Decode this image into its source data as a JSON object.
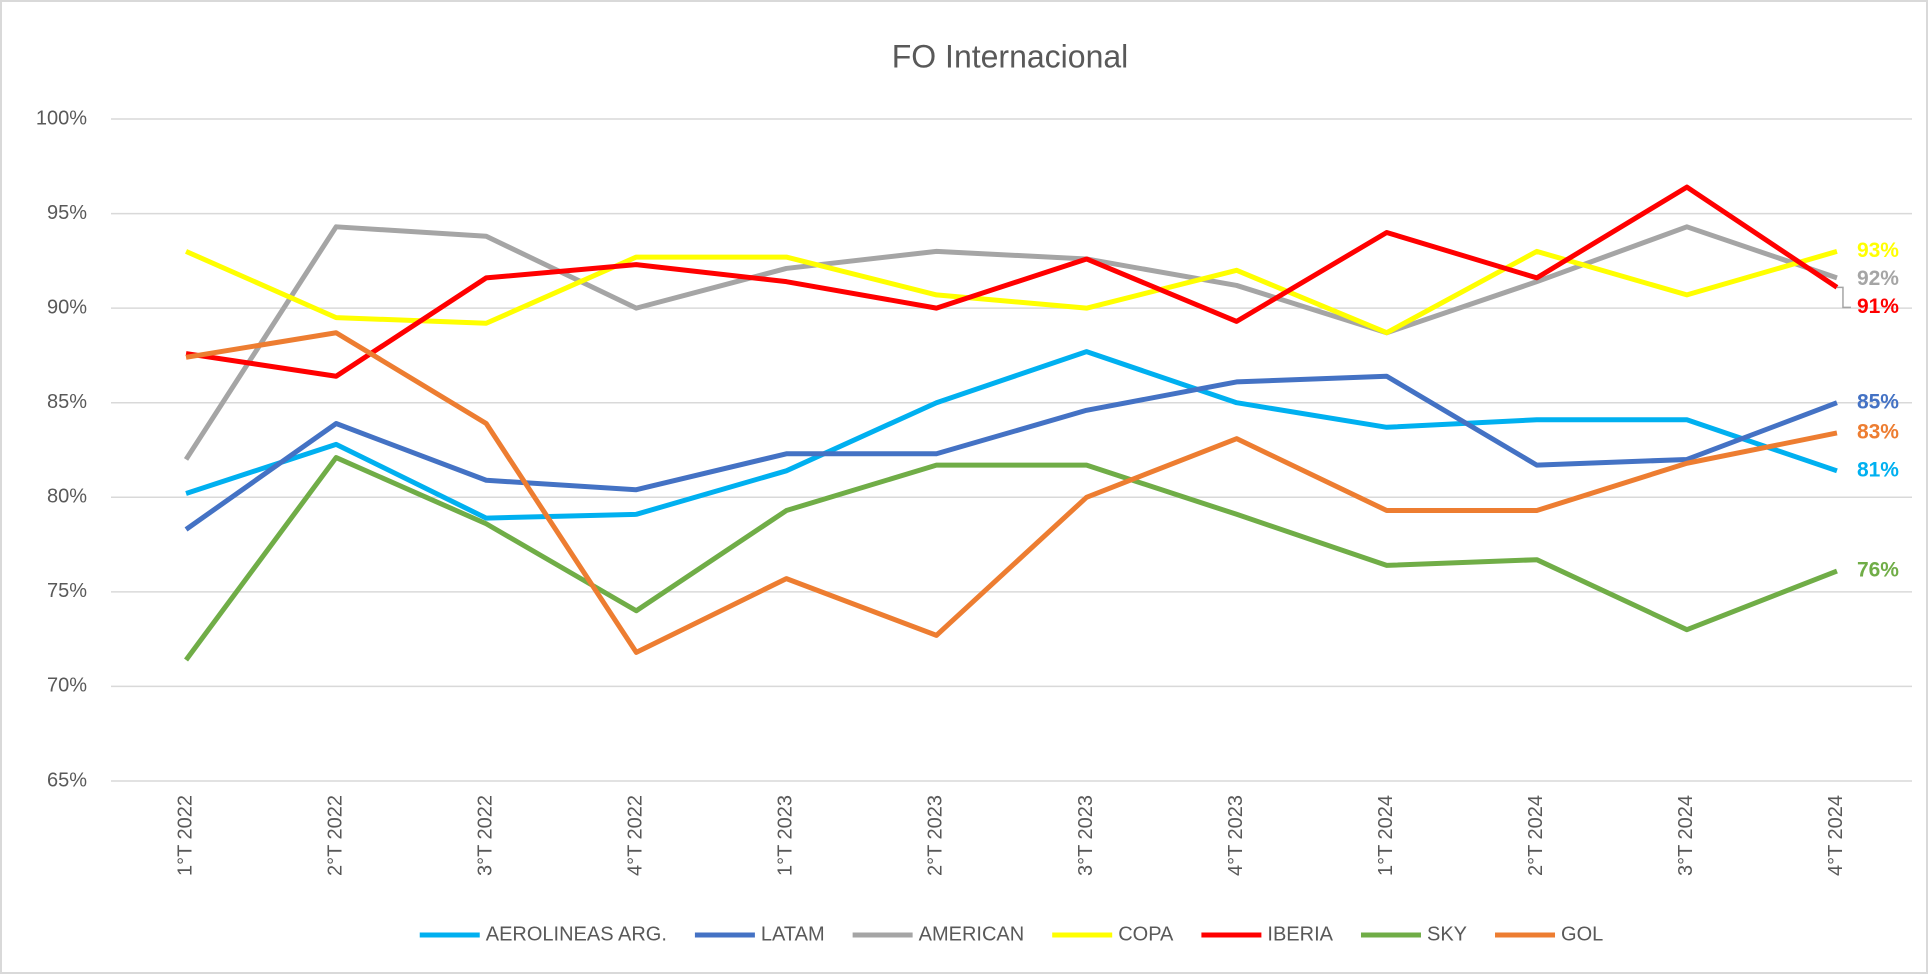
{
  "chart_data": {
    "type": "line",
    "title": "FO Internacional",
    "categories": [
      "1°T 2022",
      "2°T 2022",
      "3°T 2022",
      "4°T 2022",
      "1°T 2023",
      "2°T 2023",
      "3°T 2023",
      "4°T 2023",
      "1°T 2024",
      "2°T 2024",
      "3°T 2024",
      "4°T 2024"
    ],
    "ylim": [
      65,
      100
    ],
    "yticks": [
      {
        "value": 65,
        "label": "65%"
      },
      {
        "value": 70,
        "label": "70%"
      },
      {
        "value": 75,
        "label": "75%"
      },
      {
        "value": 80,
        "label": "80%"
      },
      {
        "value": 85,
        "label": "85%"
      },
      {
        "value": 90,
        "label": "90%"
      },
      {
        "value": 95,
        "label": "95%"
      },
      {
        "value": 100,
        "label": "100%"
      }
    ],
    "grid": true,
    "legend": "bottom",
    "series": [
      {
        "name": "AEROLINEAS ARG.",
        "color": "#00b0f0",
        "values": [
          80.2,
          82.8,
          78.9,
          79.1,
          81.4,
          85.0,
          87.7,
          85.0,
          83.7,
          84.1,
          84.1,
          81.4
        ],
        "value_labels": [
          null,
          null,
          null,
          null,
          null,
          null,
          null,
          null,
          null,
          null,
          null,
          "81%"
        ]
      },
      {
        "name": "LATAM",
        "color": "#4472c4",
        "values": [
          78.3,
          83.9,
          80.9,
          80.4,
          82.3,
          82.3,
          84.6,
          86.1,
          86.4,
          81.7,
          82.0,
          85.0
        ],
        "value_labels": [
          null,
          null,
          null,
          null,
          null,
          null,
          null,
          null,
          null,
          null,
          null,
          "85%"
        ]
      },
      {
        "name": "AMERICAN",
        "color": "#a5a5a5",
        "values": [
          82.0,
          94.3,
          93.8,
          90.0,
          92.1,
          93.0,
          92.6,
          91.2,
          88.7,
          91.4,
          94.3,
          91.6
        ],
        "value_labels": [
          null,
          null,
          null,
          null,
          null,
          null,
          null,
          null,
          null,
          null,
          null,
          "92%"
        ]
      },
      {
        "name": "COPA",
        "color": "#ffff00",
        "values": [
          93.0,
          89.5,
          89.2,
          92.7,
          92.7,
          90.7,
          90.0,
          92.0,
          88.7,
          93.0,
          90.7,
          93.0
        ],
        "value_labels": [
          null,
          null,
          null,
          null,
          null,
          null,
          null,
          null,
          null,
          null,
          null,
          "93%"
        ]
      },
      {
        "name": "IBERIA",
        "color": "#ff0000",
        "values": [
          87.6,
          86.4,
          91.6,
          92.3,
          91.4,
          90.0,
          92.6,
          89.3,
          94.0,
          91.6,
          96.4,
          91.1
        ],
        "value_labels": [
          null,
          null,
          null,
          null,
          null,
          null,
          null,
          null,
          null,
          null,
          null,
          "91%"
        ]
      },
      {
        "name": "SKY",
        "color": "#70ad47",
        "values": [
          71.4,
          82.1,
          78.6,
          74.0,
          79.3,
          81.7,
          81.7,
          79.1,
          76.4,
          76.7,
          73.0,
          76.1
        ],
        "value_labels": [
          null,
          null,
          null,
          null,
          null,
          null,
          null,
          null,
          null,
          null,
          null,
          "76%"
        ]
      },
      {
        "name": "GOL",
        "color": "#ed7d31",
        "values": [
          87.4,
          88.7,
          83.9,
          71.8,
          75.7,
          72.7,
          80.0,
          83.1,
          79.3,
          79.3,
          81.8,
          83.4
        ],
        "value_labels": [
          null,
          null,
          null,
          null,
          null,
          null,
          null,
          null,
          null,
          null,
          null,
          "83%"
        ]
      }
    ]
  }
}
